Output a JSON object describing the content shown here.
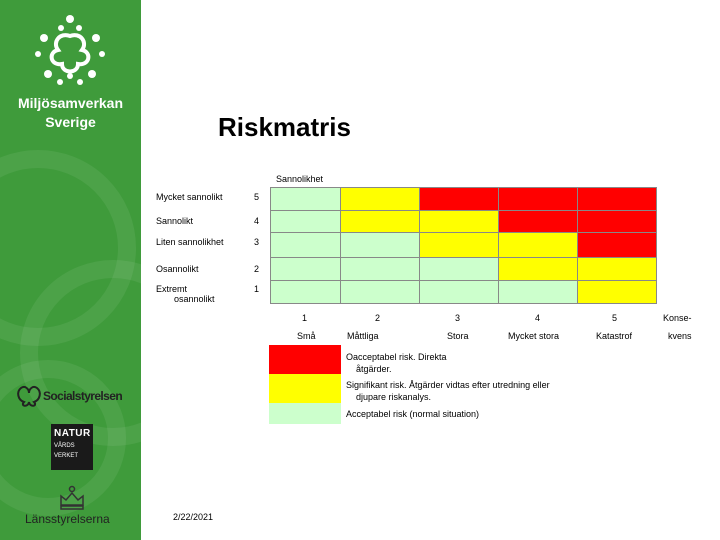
{
  "sidebar": {
    "org_line1": "Miljösamverkan",
    "org_line2": "Sverige",
    "socialstyrelsen": "Socialstyrelsen",
    "naturvards_line1": "NATUR",
    "naturvards_line2": "VÅRDS",
    "naturvards_line3": "VERKET",
    "lansstyrelserna": "Länsstyrelserna"
  },
  "title": "Riskmatris",
  "y_axis_label": "Sannolikhet",
  "rows": [
    {
      "label": "Mycket sannolikt",
      "score": "5",
      "cells": [
        "green",
        "yellow",
        "red",
        "red",
        "red"
      ]
    },
    {
      "label": "Sannolikt",
      "score": "4",
      "cells": [
        "green",
        "yellow",
        "yellow",
        "red",
        "red"
      ]
    },
    {
      "label": "Liten sannolikhet",
      "score": "3",
      "cells": [
        "green",
        "green",
        "yellow",
        "yellow",
        "red"
      ]
    },
    {
      "label": "Osannolikt",
      "score": "2",
      "cells": [
        "green",
        "green",
        "green",
        "yellow",
        "yellow"
      ]
    },
    {
      "label_line1": "Extremt",
      "label_line2": "osannolikt",
      "score": "1",
      "cells": [
        "green",
        "green",
        "green",
        "green",
        "yellow"
      ]
    }
  ],
  "columns": [
    {
      "score": "1",
      "label": "Små"
    },
    {
      "score": "2",
      "label": "Måttliga"
    },
    {
      "score": "3",
      "label": "Stora"
    },
    {
      "score": "4",
      "label": "Mycket stora"
    },
    {
      "score": "5",
      "label": "Katastrof"
    }
  ],
  "x_axis_label_line1": "Konse-",
  "x_axis_label_line2": "kvens",
  "legend": [
    {
      "color": "red",
      "line1": "Oacceptabel risk. Direkta",
      "line2": "åtgärder."
    },
    {
      "color": "yellow",
      "line1": "Signifikant risk. Åtgärder vidtas efter utredning eller",
      "line2": "djupare riskanalys."
    },
    {
      "color": "green",
      "line1": "Acceptabel risk (normal situation)",
      "line2": ""
    }
  ],
  "date": "2/22/2021",
  "colors": {
    "red": "#ff0000",
    "yellow": "#ffff00",
    "green": "#ccffcc",
    "sidebar": "#3f9b3b"
  }
}
